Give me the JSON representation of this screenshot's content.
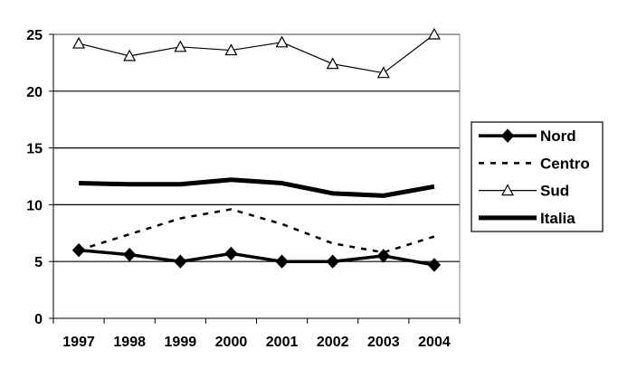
{
  "chart_data": {
    "type": "line",
    "title": "",
    "xlabel": "",
    "ylabel": "",
    "categories": [
      "1997",
      "1998",
      "1999",
      "2000",
      "2001",
      "2002",
      "2003",
      "2004"
    ],
    "ylim": [
      0,
      25
    ],
    "yticks": [
      0,
      5,
      10,
      15,
      20,
      25
    ],
    "grid": "horizontal",
    "legend_position": "right",
    "series": [
      {
        "name": "Nord",
        "style": "thick-diamond",
        "color": "#000000",
        "values": [
          6.0,
          5.6,
          5.0,
          5.7,
          5.0,
          5.0,
          5.5,
          4.7
        ]
      },
      {
        "name": "Centro",
        "style": "dashed",
        "color": "#000000",
        "values": [
          6.0,
          7.4,
          8.8,
          9.6,
          8.3,
          6.6,
          5.8,
          7.2
        ]
      },
      {
        "name": "Sud",
        "style": "thin-triangle",
        "color": "#000000",
        "values": [
          24.2,
          23.1,
          23.9,
          23.6,
          24.3,
          22.4,
          21.6,
          25.0
        ]
      },
      {
        "name": "Italia",
        "style": "extra-thick",
        "color": "#000000",
        "values": [
          11.9,
          11.8,
          11.8,
          12.2,
          11.9,
          11.0,
          10.8,
          11.6
        ]
      }
    ]
  }
}
